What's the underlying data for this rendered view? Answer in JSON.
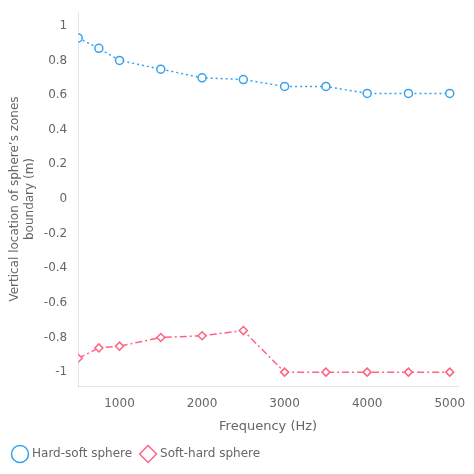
{
  "chart_data": {
    "type": "line",
    "x": [
      500,
      750,
      1000,
      1500,
      2000,
      2500,
      3000,
      3500,
      4000,
      4500,
      5000
    ],
    "series": [
      {
        "name": "Hard-soft sphere",
        "values": [
          0.93,
          0.87,
          0.8,
          0.75,
          0.7,
          0.69,
          0.65,
          0.65,
          0.61,
          0.61,
          0.61
        ],
        "marker": "circle",
        "line_style": "dotted"
      },
      {
        "name": "Soft-hard sphere",
        "values": [
          -0.92,
          -0.86,
          -0.85,
          -0.8,
          -0.79,
          -0.76,
          -1.0,
          -1.0,
          -1.0,
          -1.0,
          -1.0
        ],
        "marker": "diamond",
        "line_style": "dashdot"
      }
    ],
    "xlabel": "Frequency (Hz)",
    "ylabel": "Vertical location of sphere’s zones\nboundary (m)",
    "xlim": [
      500,
      5100
    ],
    "ylim": [
      -1.08,
      1.08
    ],
    "xticks": [
      1000,
      2000,
      3000,
      4000,
      5000
    ],
    "yticks": [
      -1.0,
      -0.8,
      -0.6,
      -0.4,
      -0.2,
      0,
      0.2,
      0.4,
      0.6,
      0.8,
      1.0
    ],
    "grid": false,
    "legend": "bottom"
  }
}
